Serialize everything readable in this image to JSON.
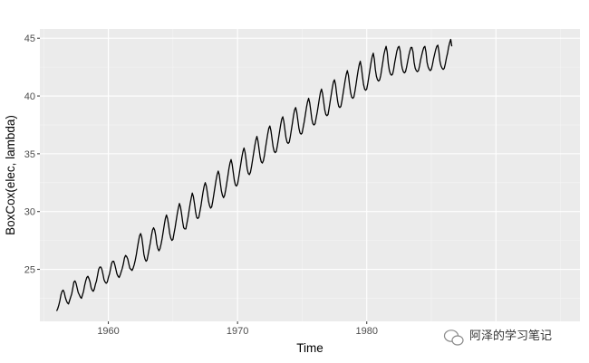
{
  "chart_data": {
    "type": "line",
    "title": "",
    "xlabel": "Time",
    "ylabel": "BoxCox(elec, lambda)",
    "xlim": [
      1954.7,
      1996.5
    ],
    "ylim": [
      20.5,
      45.8
    ],
    "x_ticks": [
      1960,
      1970,
      1980
    ],
    "y_ticks": [
      25,
      30,
      35,
      40,
      45
    ],
    "grid": true,
    "legend": "none",
    "series": [
      {
        "frequency": "monthly",
        "start": "1956-01",
        "values": [
          21.4,
          21.6,
          21.9,
          22.3,
          22.8,
          23.1,
          23.2,
          23.0,
          22.6,
          22.3,
          22.1,
          22.0,
          22.3,
          22.6,
          22.9,
          23.4,
          23.9,
          24.0,
          23.8,
          23.4,
          23.0,
          22.8,
          22.6,
          22.5,
          22.8,
          23.1,
          23.6,
          24.0,
          24.3,
          24.4,
          24.2,
          23.9,
          23.4,
          23.2,
          23.1,
          23.3,
          23.7,
          24.0,
          24.5,
          25.0,
          25.2,
          25.2,
          25.0,
          24.6,
          24.1,
          23.9,
          23.8,
          23.9,
          24.3,
          24.6,
          25.0,
          25.5,
          25.7,
          25.7,
          25.4,
          25.0,
          24.6,
          24.4,
          24.3,
          24.5,
          24.8,
          25.1,
          25.5,
          26.0,
          26.2,
          26.1,
          25.9,
          25.5,
          25.1,
          25.0,
          24.9,
          25.1,
          25.4,
          25.8,
          26.3,
          26.9,
          27.4,
          27.9,
          28.1,
          27.8,
          27.1,
          26.3,
          25.9,
          25.7,
          25.8,
          26.3,
          26.8,
          27.3,
          27.9,
          28.4,
          28.6,
          28.4,
          27.9,
          27.2,
          26.8,
          26.6,
          26.8,
          27.2,
          27.7,
          28.3,
          28.9,
          29.4,
          29.7,
          29.4,
          28.8,
          28.1,
          27.7,
          27.5,
          27.6,
          28.1,
          28.6,
          29.2,
          29.8,
          30.3,
          30.7,
          30.4,
          29.8,
          29.1,
          28.6,
          28.5,
          28.5,
          29.0,
          29.5,
          30.1,
          30.7,
          31.2,
          31.6,
          31.3,
          30.7,
          30.0,
          29.5,
          29.4,
          29.5,
          30.0,
          30.5,
          31.1,
          31.7,
          32.2,
          32.5,
          32.2,
          31.6,
          30.9,
          30.5,
          30.3,
          30.4,
          30.9,
          31.5,
          32.1,
          32.7,
          33.2,
          33.5,
          33.2,
          32.5,
          31.8,
          31.4,
          31.2,
          31.4,
          31.9,
          32.5,
          33.1,
          33.7,
          34.2,
          34.5,
          34.1,
          33.4,
          32.7,
          32.3,
          32.2,
          32.4,
          32.9,
          33.5,
          34.1,
          34.7,
          35.2,
          35.5,
          35.1,
          34.4,
          33.7,
          33.3,
          33.2,
          33.4,
          33.9,
          34.5,
          35.1,
          35.7,
          36.2,
          36.5,
          36.1,
          35.4,
          34.7,
          34.3,
          34.2,
          34.4,
          34.9,
          35.5,
          36.1,
          36.7,
          37.2,
          37.4,
          37.0,
          36.3,
          35.6,
          35.2,
          35.1,
          35.2,
          35.7,
          36.3,
          36.9,
          37.5,
          38.0,
          38.2,
          37.8,
          37.1,
          36.4,
          36.0,
          35.9,
          36.0,
          36.5,
          37.1,
          37.7,
          38.3,
          38.8,
          39.0,
          38.6,
          37.9,
          37.2,
          36.8,
          36.7,
          36.8,
          37.3,
          37.8,
          38.4,
          39.0,
          39.5,
          39.8,
          39.4,
          38.7,
          38.0,
          37.6,
          37.5,
          37.6,
          38.1,
          38.6,
          39.2,
          39.8,
          40.3,
          40.6,
          40.2,
          39.5,
          38.8,
          38.4,
          38.3,
          38.4,
          38.9,
          39.5,
          40.1,
          40.7,
          41.2,
          41.4,
          41.0,
          40.2,
          39.5,
          39.1,
          39.0,
          39.1,
          39.6,
          40.2,
          40.8,
          41.4,
          41.9,
          42.2,
          41.8,
          41.0,
          40.3,
          39.9,
          39.8,
          39.9,
          40.4,
          41.0,
          41.6,
          42.2,
          42.7,
          43.0,
          42.5,
          41.7,
          41.0,
          40.6,
          40.5,
          40.6,
          41.1,
          41.7,
          42.3,
          42.9,
          43.4,
          43.7,
          43.2,
          42.3,
          41.7,
          41.4,
          41.3,
          41.4,
          41.8,
          42.4,
          43.0,
          43.6,
          44.0,
          44.3,
          43.8,
          42.8,
          42.2,
          41.9,
          41.8,
          41.9,
          42.3,
          42.9,
          43.4,
          43.9,
          44.2,
          44.3,
          43.9,
          42.9,
          42.4,
          42.1,
          42.0,
          42.1,
          42.5,
          43.0,
          43.5,
          43.9,
          44.2,
          44.2,
          43.8,
          42.9,
          42.4,
          42.2,
          42.1,
          42.2,
          42.6,
          43.1,
          43.5,
          43.9,
          44.2,
          44.3,
          43.8,
          42.9,
          42.5,
          42.3,
          42.2,
          42.3,
          42.7,
          43.2,
          43.6,
          44.0,
          44.3,
          44.4,
          43.9,
          43.0,
          42.6,
          42.4,
          42.3,
          42.4,
          42.8,
          43.3,
          43.7,
          44.2,
          44.6,
          44.9,
          44.3
        ]
      }
    ]
  },
  "watermark": {
    "text": "阿泽的学习笔记",
    "icon": "wechat-icon"
  }
}
